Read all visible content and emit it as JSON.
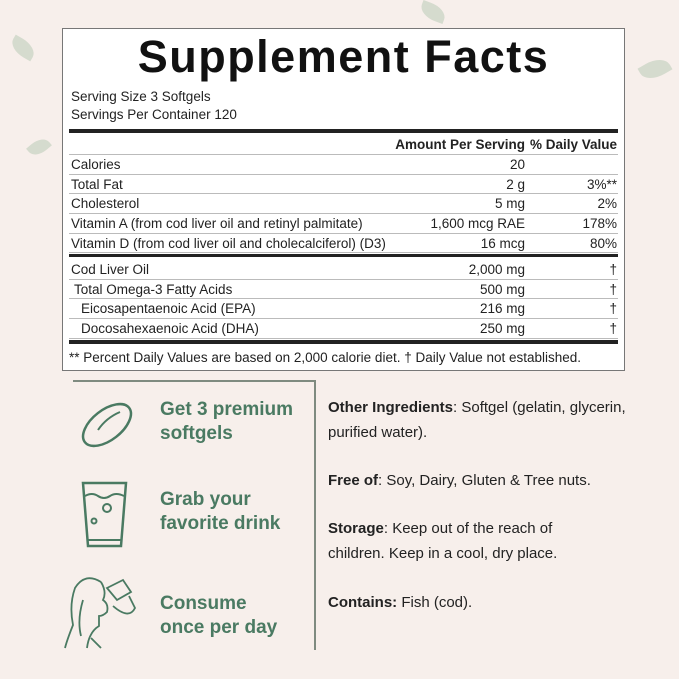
{
  "label": {
    "title": "Supplement Facts",
    "serving_size": "Serving Size 3 Softgels",
    "servings_per_container": "Servings Per Container 120",
    "col_amount": "Amount Per Serving",
    "col_dv": "% Daily Value",
    "rows_a": [
      {
        "name": "Calories",
        "amount": "20",
        "dv": ""
      },
      {
        "name": "Total Fat",
        "amount": "2 g",
        "dv": "3%**"
      },
      {
        "name": "Cholesterol",
        "amount": "5 mg",
        "dv": "2%"
      },
      {
        "name": "Vitamin A (from cod liver oil and retinyl palmitate)",
        "amount": "1,600 mcg RAE",
        "dv": "178%"
      },
      {
        "name": "Vitamin D (from cod liver oil and cholecalciferol) (D3)",
        "amount": "16 mcg",
        "dv": "80%"
      }
    ],
    "rows_b": [
      {
        "name": "Cod Liver Oil",
        "amount": "2,000 mg",
        "dv": "†"
      },
      {
        "name": "Total Omega-3 Fatty Acids",
        "amount": "500 mg",
        "dv": "†"
      },
      {
        "name": "Eicosapentaenoic Acid (EPA)",
        "amount": "216 mg",
        "dv": "†"
      },
      {
        "name": "Docosahexaenoic Acid (DHA)",
        "amount": "250 mg",
        "dv": "†"
      }
    ],
    "footnote": "** Percent Daily Values are based on 2,000 calorie diet. † Daily Value not established."
  },
  "steps": [
    {
      "icon": "softgel-icon",
      "line1": "Get 3 premium",
      "line2": "softgels"
    },
    {
      "icon": "glass-icon",
      "line1": "Grab your",
      "line2": "favorite drink"
    },
    {
      "icon": "woman-drinking-icon",
      "line1": "Consume",
      "line2": "once per day"
    }
  ],
  "info": [
    {
      "label": "Other Ingredients",
      "text": ": Softgel (gelatin, glycerin, purified water)."
    },
    {
      "label": "Free of",
      "text": ": Soy, Dairy, Gluten & Tree nuts."
    },
    {
      "label": "Storage",
      "text": ": Keep out of the reach of children. Keep in a cool, dry place."
    },
    {
      "label": "Contains:",
      "text": " Fish (cod)."
    }
  ],
  "colors": {
    "accent": "#4a7a62",
    "background": "#f7efeb"
  }
}
